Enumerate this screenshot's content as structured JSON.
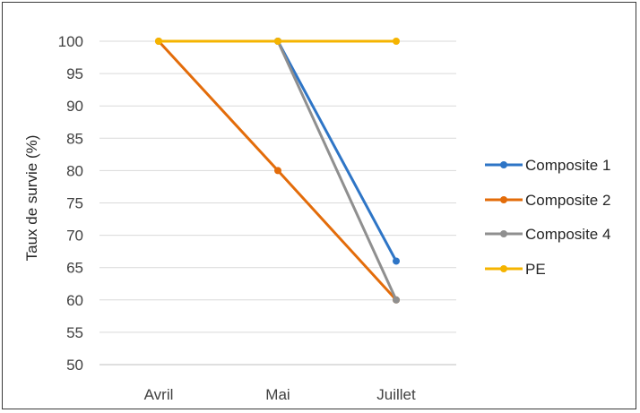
{
  "chart_data": {
    "type": "line",
    "title": "",
    "xlabel": "",
    "ylabel": "Taux de survie (%)",
    "categories": [
      "Avril",
      "Mai",
      "Juillet"
    ],
    "ylim": [
      50,
      100
    ],
    "yticks": [
      50,
      55,
      60,
      65,
      70,
      75,
      80,
      85,
      90,
      95,
      100
    ],
    "grid": "horizontal",
    "legend_position": "right",
    "series": [
      {
        "name": "Composite 1",
        "color": "#2e75c6",
        "values": [
          null,
          100,
          66
        ]
      },
      {
        "name": "Composite 2",
        "color": "#e36c0a",
        "values": [
          100,
          80,
          60
        ]
      },
      {
        "name": "Composite 4",
        "color": "#8f8f8f",
        "values": [
          null,
          100,
          60
        ]
      },
      {
        "name": "PE",
        "color": "#f5b400",
        "values": [
          100,
          100,
          100
        ]
      }
    ]
  }
}
